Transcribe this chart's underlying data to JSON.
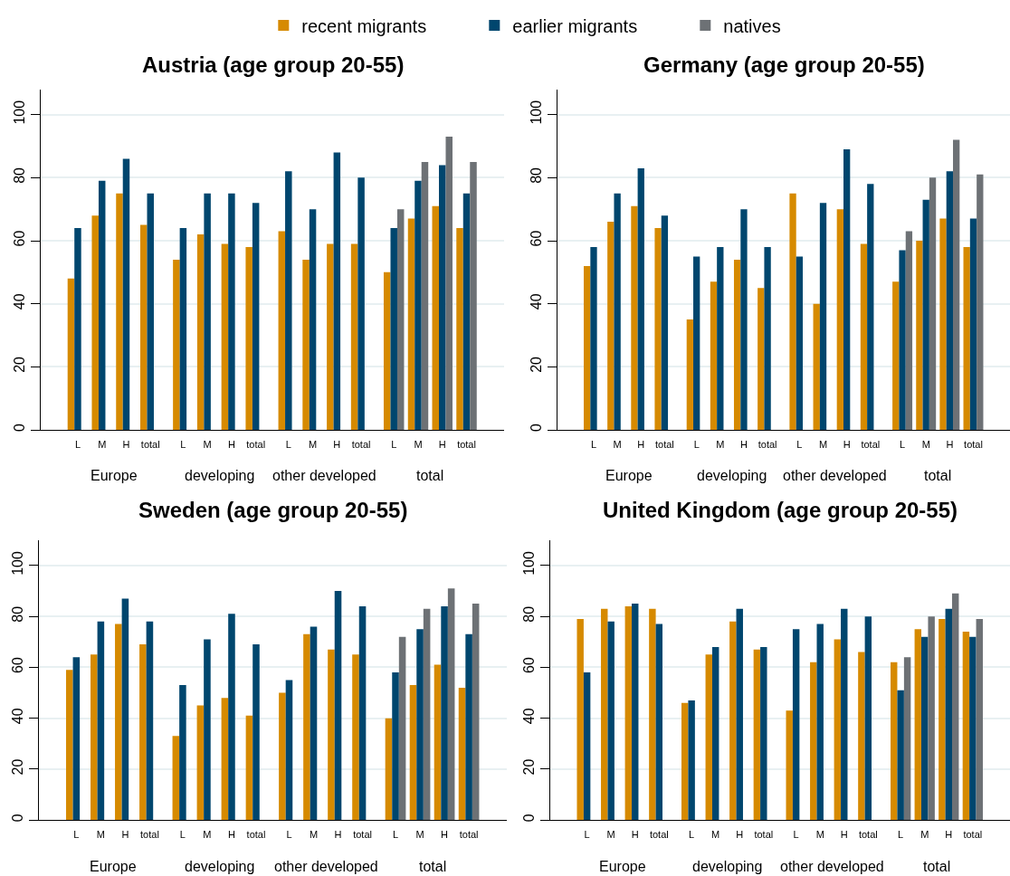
{
  "chart_data": [
    {
      "type": "bar",
      "title": "Austria (age group 20-55)",
      "categories": [
        "L",
        "M",
        "H",
        "total",
        "L",
        "M",
        "H",
        "total",
        "L",
        "M",
        "H",
        "total",
        "L",
        "M",
        "H",
        "total"
      ],
      "annotations": [
        "Europe",
        "developing",
        "other developed",
        "total"
      ],
      "legend": "top",
      "grid": "y",
      "ylim": [
        0,
        108
      ],
      "yticks": [
        0,
        20,
        40,
        60,
        80,
        100
      ],
      "series": [
        {
          "name": "recent migrants",
          "color": "#d68a00",
          "values": [
            48,
            68,
            75,
            65,
            54,
            62,
            59,
            58,
            63,
            54,
            59,
            59,
            50,
            67,
            71,
            64
          ]
        },
        {
          "name": "earlier migrants",
          "color": "#00466e",
          "values": [
            64,
            79,
            86,
            75,
            64,
            75,
            75,
            72,
            82,
            70,
            88,
            80,
            64,
            79,
            84,
            75
          ]
        },
        {
          "name": "natives",
          "color": "#6d7175",
          "values": [
            null,
            null,
            null,
            null,
            null,
            null,
            null,
            null,
            null,
            null,
            null,
            null,
            70,
            85,
            93,
            85
          ]
        }
      ]
    },
    {
      "type": "bar",
      "title": "Germany (age group 20-55)",
      "categories": [
        "L",
        "M",
        "H",
        "total",
        "L",
        "M",
        "H",
        "total",
        "L",
        "M",
        "H",
        "total",
        "L",
        "M",
        "H",
        "total"
      ],
      "annotations": [
        "Europe",
        "developing",
        "other developed",
        "total"
      ],
      "grid": "y",
      "ylim": [
        0,
        108
      ],
      "yticks": [
        0,
        20,
        40,
        60,
        80,
        100
      ],
      "series": [
        {
          "name": "recent migrants",
          "color": "#d68a00",
          "values": [
            52,
            66,
            71,
            64,
            35,
            47,
            54,
            45,
            75,
            40,
            70,
            59,
            47,
            60,
            67,
            58
          ]
        },
        {
          "name": "earlier migrants",
          "color": "#00466e",
          "values": [
            58,
            75,
            83,
            68,
            55,
            58,
            70,
            58,
            55,
            72,
            89,
            78,
            57,
            73,
            82,
            67
          ]
        },
        {
          "name": "natives",
          "color": "#6d7175",
          "values": [
            null,
            null,
            null,
            null,
            null,
            null,
            null,
            null,
            null,
            null,
            null,
            null,
            63,
            80,
            92,
            81
          ]
        }
      ]
    },
    {
      "type": "bar",
      "title": "Sweden (age group 20-55)",
      "categories": [
        "L",
        "M",
        "H",
        "total",
        "L",
        "M",
        "H",
        "total",
        "L",
        "M",
        "H",
        "total",
        "L",
        "M",
        "H",
        "total"
      ],
      "annotations": [
        "Europe",
        "developing",
        "other developed",
        "total"
      ],
      "grid": "y",
      "ylim": [
        0,
        110
      ],
      "yticks": [
        0,
        20,
        40,
        60,
        80,
        100
      ],
      "series": [
        {
          "name": "recent migrants",
          "color": "#d68a00",
          "values": [
            59,
            65,
            77,
            69,
            33,
            45,
            48,
            41,
            50,
            73,
            67,
            65,
            40,
            53,
            61,
            52
          ]
        },
        {
          "name": "earlier migrants",
          "color": "#00466e",
          "values": [
            64,
            78,
            87,
            78,
            53,
            71,
            81,
            69,
            55,
            76,
            90,
            84,
            58,
            75,
            84,
            73
          ]
        },
        {
          "name": "natives",
          "color": "#6d7175",
          "values": [
            null,
            null,
            null,
            null,
            null,
            null,
            null,
            null,
            null,
            null,
            null,
            null,
            72,
            83,
            91,
            85
          ]
        }
      ]
    },
    {
      "type": "bar",
      "title": "United Kingdom (age group 20-55)",
      "categories": [
        "L",
        "M",
        "H",
        "total",
        "L",
        "M",
        "H",
        "total",
        "L",
        "M",
        "H",
        "total",
        "L",
        "M",
        "H",
        "total"
      ],
      "annotations": [
        "Europe",
        "developing",
        "other developed",
        "total"
      ],
      "grid": "y",
      "ylim": [
        0,
        110
      ],
      "yticks": [
        0,
        20,
        40,
        60,
        80,
        100
      ],
      "series": [
        {
          "name": "recent migrants",
          "color": "#d68a00",
          "values": [
            79,
            83,
            84,
            83,
            46,
            65,
            78,
            67,
            43,
            62,
            71,
            66,
            62,
            75,
            79,
            74
          ]
        },
        {
          "name": "earlier migrants",
          "color": "#00466e",
          "values": [
            58,
            78,
            85,
            77,
            47,
            68,
            83,
            68,
            75,
            77,
            83,
            80,
            51,
            72,
            83,
            72
          ]
        },
        {
          "name": "natives",
          "color": "#6d7175",
          "values": [
            null,
            null,
            null,
            null,
            null,
            null,
            null,
            null,
            null,
            null,
            null,
            null,
            64,
            80,
            89,
            79
          ]
        }
      ]
    }
  ]
}
